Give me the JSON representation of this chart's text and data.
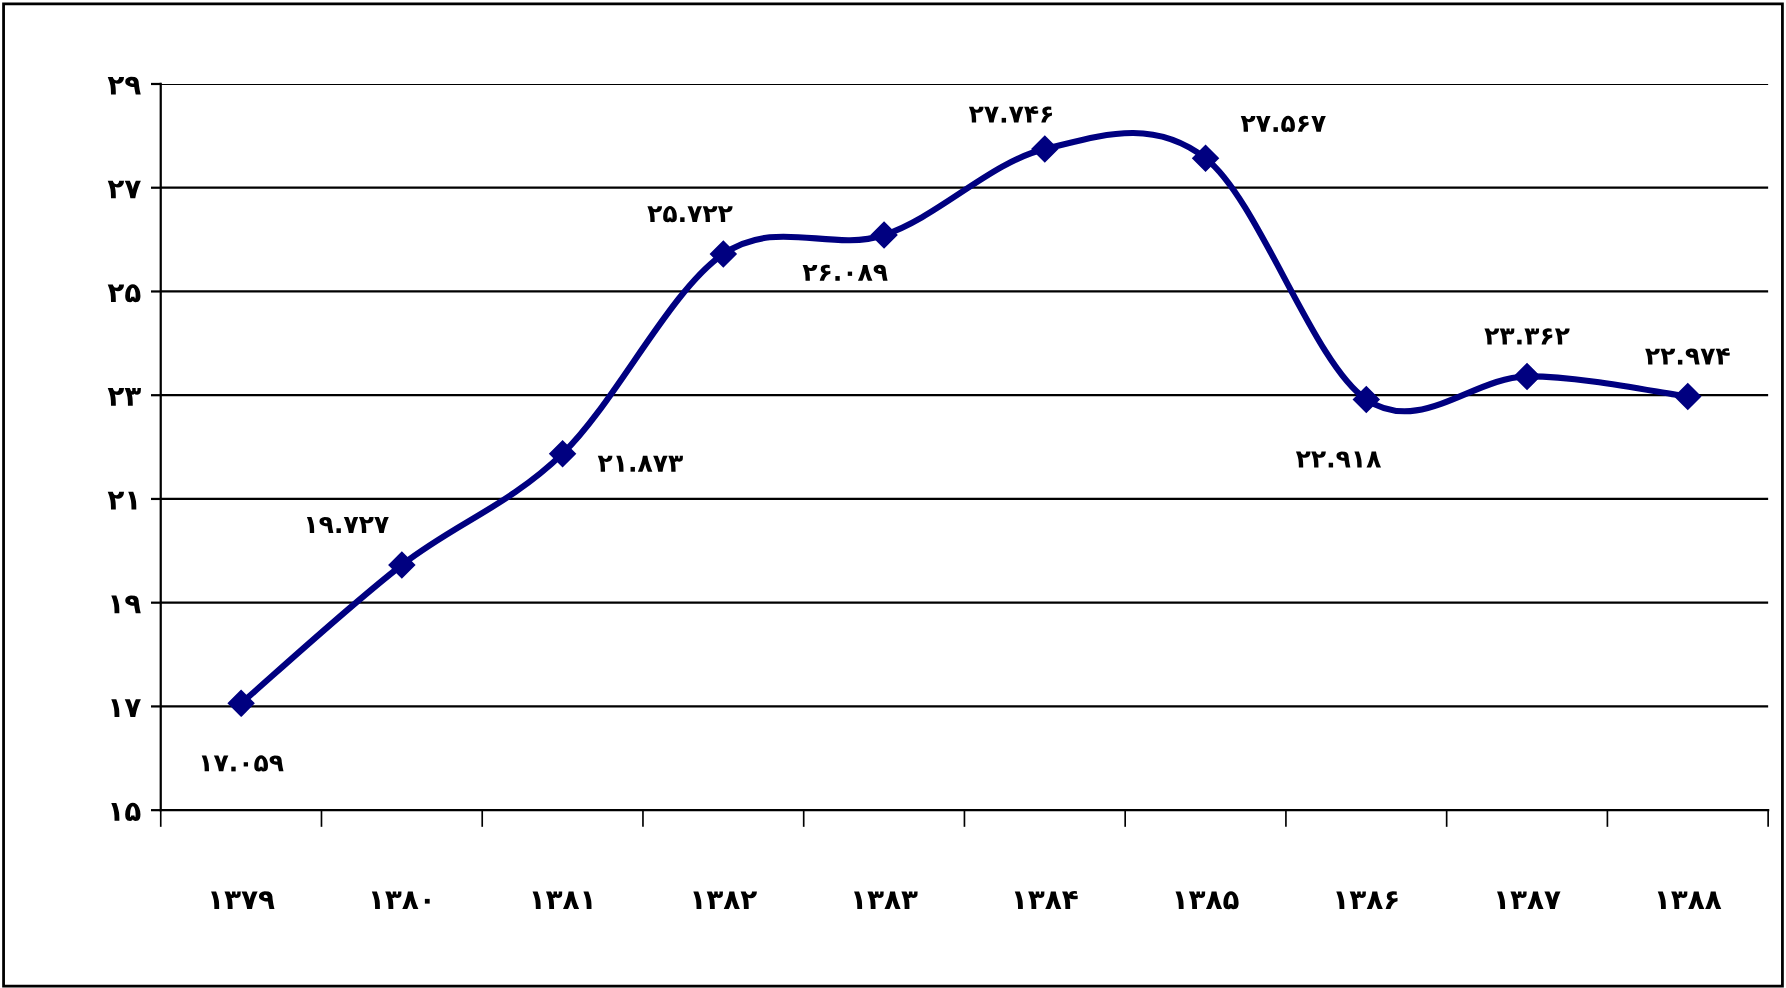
{
  "chart_data": {
    "type": "line",
    "categories": [
      "۱۳۷۹",
      "۱۳۸۰",
      "۱۳۸۱",
      "۱۳۸۲",
      "۱۳۸۳",
      "۱۳۸۴",
      "۱۳۸۵",
      "۱۳۸۶",
      "۱۳۸۷",
      "۱۳۸۸"
    ],
    "series": [
      {
        "color": "#000080",
        "values": [
          17.059,
          19.727,
          21.873,
          25.722,
          26.089,
          27.746,
          27.567,
          22.918,
          23.362,
          22.974
        ],
        "value_labels": [
          "۱۷.۰۵۹",
          "۱۹.۷۲۷",
          "۲۱.۸۷۳",
          "۲۵.۷۲۲",
          "۲۶.۰۸۹",
          "۲۷.۷۴۶",
          "۲۷.۵۶۷",
          "۲۲.۹۱۸",
          "۲۳.۳۶۲",
          "۲۲.۹۷۴"
        ]
      }
    ],
    "ylim": [
      15,
      29
    ],
    "yticks": [
      {
        "value": 15,
        "label": "۱۵"
      },
      {
        "value": 17,
        "label": "۱۷"
      },
      {
        "value": 19,
        "label": "۱۹"
      },
      {
        "value": 21,
        "label": "۲۱"
      },
      {
        "value": 23,
        "label": "۲۳"
      },
      {
        "value": 25,
        "label": "۲۵"
      },
      {
        "value": 27,
        "label": "۲۷"
      },
      {
        "value": 29,
        "label": "۲۹"
      }
    ],
    "grid": "y",
    "marker": "diamond",
    "line_style": "solid",
    "legend": false
  }
}
